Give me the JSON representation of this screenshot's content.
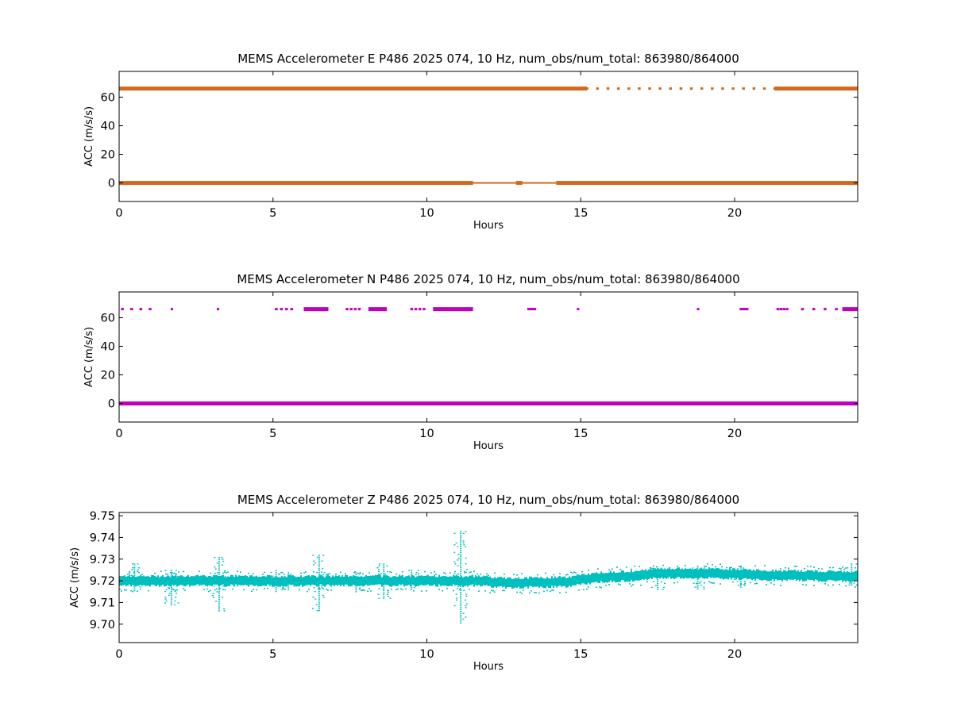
{
  "chart_data": [
    {
      "type": "scatter",
      "title": "MEMS Accelerometer E P486 2025 074, 10 Hz, num_obs/num_total: 863980/864000",
      "xlabel": "Hours",
      "ylabel": "ACC (m/s/s)",
      "xlim": [
        0,
        24
      ],
      "ylim": [
        -13,
        78
      ],
      "xticks": [
        "0",
        "5",
        "10",
        "15",
        "20"
      ],
      "yticks": [
        "0",
        "20",
        "40",
        "60"
      ],
      "color": "#d2691e",
      "series": [
        {
          "level": 0,
          "segments": [
            [
              0,
              11.5,
              "thick"
            ],
            [
              11.5,
              14.2,
              "thin"
            ],
            [
              12.9,
              13.1,
              "thick"
            ],
            [
              14.2,
              24,
              "thick"
            ]
          ]
        },
        {
          "level": 66,
          "segments": [
            [
              0,
              15.2,
              "thick"
            ],
            [
              15.2,
              21.3,
              "sparse"
            ],
            [
              21.3,
              24,
              "thick"
            ]
          ]
        }
      ]
    },
    {
      "type": "scatter",
      "title": "MEMS Accelerometer N P486 2025 074, 10 Hz, num_obs/num_total: 863980/864000",
      "xlabel": "Hours",
      "ylabel": "ACC (m/s/s)",
      "xlim": [
        0,
        24
      ],
      "ylim": [
        -13,
        78
      ],
      "xticks": [
        "0",
        "5",
        "10",
        "15",
        "20"
      ],
      "yticks": [
        "0",
        "20",
        "40",
        "60"
      ],
      "color": "#bf00bf",
      "series": [
        {
          "level": 0,
          "segments": [
            [
              0,
              24,
              "thick"
            ]
          ]
        },
        {
          "level": 66,
          "segments": [
            [
              0.1,
              1.0,
              "sparse"
            ],
            [
              1.7,
              1.7,
              "dot"
            ],
            [
              3.2,
              3.2,
              "dot"
            ],
            [
              5.1,
              5.6,
              "sparse"
            ],
            [
              6.0,
              6.8,
              "thick"
            ],
            [
              7.4,
              7.8,
              "sparse"
            ],
            [
              8.1,
              8.7,
              "thick"
            ],
            [
              9.5,
              9.9,
              "sparse"
            ],
            [
              10.2,
              11.5,
              "thick"
            ],
            [
              13.3,
              13.5,
              "sparse"
            ],
            [
              14.9,
              14.9,
              "dot"
            ],
            [
              18.8,
              18.8,
              "dot"
            ],
            [
              20.2,
              20.4,
              "sparse"
            ],
            [
              21.4,
              21.7,
              "sparse"
            ],
            [
              22.2,
              23.3,
              "sparse"
            ],
            [
              23.5,
              24,
              "thick"
            ]
          ]
        }
      ]
    },
    {
      "type": "scatter",
      "title": "MEMS Accelerometer Z P486 2025 074, 10 Hz, num_obs/num_total: 863980/864000",
      "xlabel": "Hours",
      "ylabel": "ACC (m/s/s)",
      "xlim": [
        0,
        24
      ],
      "ylim": [
        9.6915,
        9.7515
      ],
      "xticks": [
        "0",
        "5",
        "10",
        "15",
        "20"
      ],
      "yticks": [
        "9.70",
        "9.71",
        "9.72",
        "9.73",
        "9.74",
        "9.75"
      ],
      "color": "#00bfbf",
      "baseline": [
        [
          0,
          9.72
        ],
        [
          11.5,
          9.72
        ],
        [
          12.5,
          9.719
        ],
        [
          14.5,
          9.7195
        ],
        [
          15.5,
          9.7215
        ],
        [
          16.8,
          9.7225
        ],
        [
          17.5,
          9.7235
        ],
        [
          19,
          9.7235
        ],
        [
          20,
          9.723
        ],
        [
          21.5,
          9.7225
        ],
        [
          24,
          9.722
        ]
      ],
      "spikes": [
        [
          0.5,
          9.728,
          9.715
        ],
        [
          1.7,
          9.725,
          9.709
        ],
        [
          3.25,
          9.731,
          9.706
        ],
        [
          5.1,
          9.725,
          9.715
        ],
        [
          5.5,
          9.724,
          9.716
        ],
        [
          6.5,
          9.732,
          9.706
        ],
        [
          7.7,
          9.724,
          9.715
        ],
        [
          8.6,
          9.728,
          9.712
        ],
        [
          9.5,
          9.725,
          9.716
        ],
        [
          11.1,
          9.743,
          9.7
        ],
        [
          17.5,
          9.726,
          9.716
        ],
        [
          18.8,
          9.727,
          9.716
        ],
        [
          20.2,
          9.727,
          9.717
        ],
        [
          23.8,
          9.728,
          9.718
        ]
      ]
    }
  ]
}
